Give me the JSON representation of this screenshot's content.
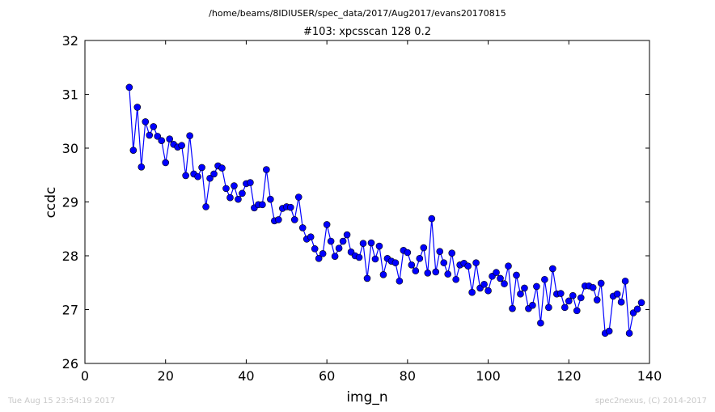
{
  "header": {
    "path": "/home/beams/8IDIUSER/spec_data/2017/Aug2017/evans20170815",
    "title": "#103: xpcsscan 128 0.2"
  },
  "footer": {
    "timestamp": "Tue Aug 15 23:54:19 2017",
    "credit": "spec2nexus, (C) 2014-2017"
  },
  "chart_data": {
    "type": "line",
    "title": "#103: xpcsscan 128 0.2",
    "xlabel": "img_n",
    "ylabel": "ccdc",
    "xlim": [
      0,
      140
    ],
    "ylim": [
      26,
      32
    ],
    "xticks": [
      0,
      20,
      40,
      60,
      80,
      100,
      120,
      140
    ],
    "yticks": [
      26,
      27,
      28,
      29,
      30,
      31,
      32
    ],
    "grid": false,
    "color": "#0000ff",
    "marker": "circle",
    "series": [
      {
        "x": [
          11,
          12,
          13,
          14,
          15,
          16,
          17,
          18,
          19,
          20,
          21,
          22,
          23,
          24,
          25,
          26,
          27,
          28,
          29,
          30,
          31,
          32,
          33,
          34,
          35,
          36,
          37,
          38,
          39,
          40,
          41,
          42,
          43,
          44,
          45,
          46,
          47,
          48,
          49,
          50,
          51,
          52,
          53,
          54,
          55,
          56,
          57,
          58,
          59,
          60,
          61,
          62,
          63,
          64,
          65,
          66,
          67,
          68,
          69,
          70,
          71,
          72,
          73,
          74,
          75,
          76,
          77,
          78,
          79,
          80,
          81,
          82,
          83,
          84,
          85,
          86,
          87,
          88,
          89,
          90,
          91,
          92,
          93,
          94,
          95,
          96,
          97,
          98,
          99,
          100,
          101,
          102,
          103,
          104,
          105,
          106,
          107,
          108,
          109,
          110,
          111,
          112,
          113,
          114,
          115,
          116,
          117,
          118,
          119,
          120,
          121,
          122,
          123,
          124,
          125,
          126,
          127,
          128,
          129,
          130,
          131,
          132,
          133,
          134,
          135,
          136,
          137,
          138
        ],
        "y": [
          31.13,
          29.96,
          30.76,
          29.65,
          30.49,
          30.24,
          30.4,
          30.22,
          30.14,
          29.73,
          30.17,
          30.07,
          30.02,
          30.05,
          29.49,
          30.23,
          29.52,
          29.47,
          29.64,
          28.91,
          29.44,
          29.52,
          29.67,
          29.63,
          29.25,
          29.08,
          29.3,
          29.05,
          29.16,
          29.34,
          29.36,
          28.89,
          28.95,
          28.95,
          29.6,
          29.05,
          28.65,
          28.67,
          28.88,
          28.91,
          28.9,
          28.67,
          29.09,
          28.52,
          28.31,
          28.35,
          28.13,
          27.95,
          28.04,
          28.58,
          28.27,
          27.99,
          28.14,
          28.27,
          28.39,
          28.07,
          28.0,
          27.97,
          28.23,
          27.58,
          28.24,
          27.94,
          28.18,
          27.65,
          27.95,
          27.9,
          27.87,
          27.53,
          28.1,
          28.06,
          27.83,
          27.72,
          27.95,
          28.15,
          27.68,
          28.69,
          27.7,
          28.08,
          27.87,
          27.66,
          28.05,
          27.56,
          27.83,
          27.86,
          27.81,
          27.32,
          27.87,
          27.4,
          27.47,
          27.35,
          27.62,
          27.69,
          27.58,
          27.48,
          27.81,
          27.02,
          27.64,
          27.29,
          27.4,
          27.02,
          27.08,
          27.43,
          26.75,
          27.56,
          27.04,
          27.76,
          27.29,
          27.3,
          27.04,
          27.16,
          27.26,
          26.98,
          27.22,
          27.44,
          27.44,
          27.41,
          27.18,
          27.49,
          26.56,
          26.6,
          27.25,
          27.29,
          27.14,
          27.53,
          26.56,
          26.94,
          27.01,
          27.13
        ]
      }
    ]
  }
}
